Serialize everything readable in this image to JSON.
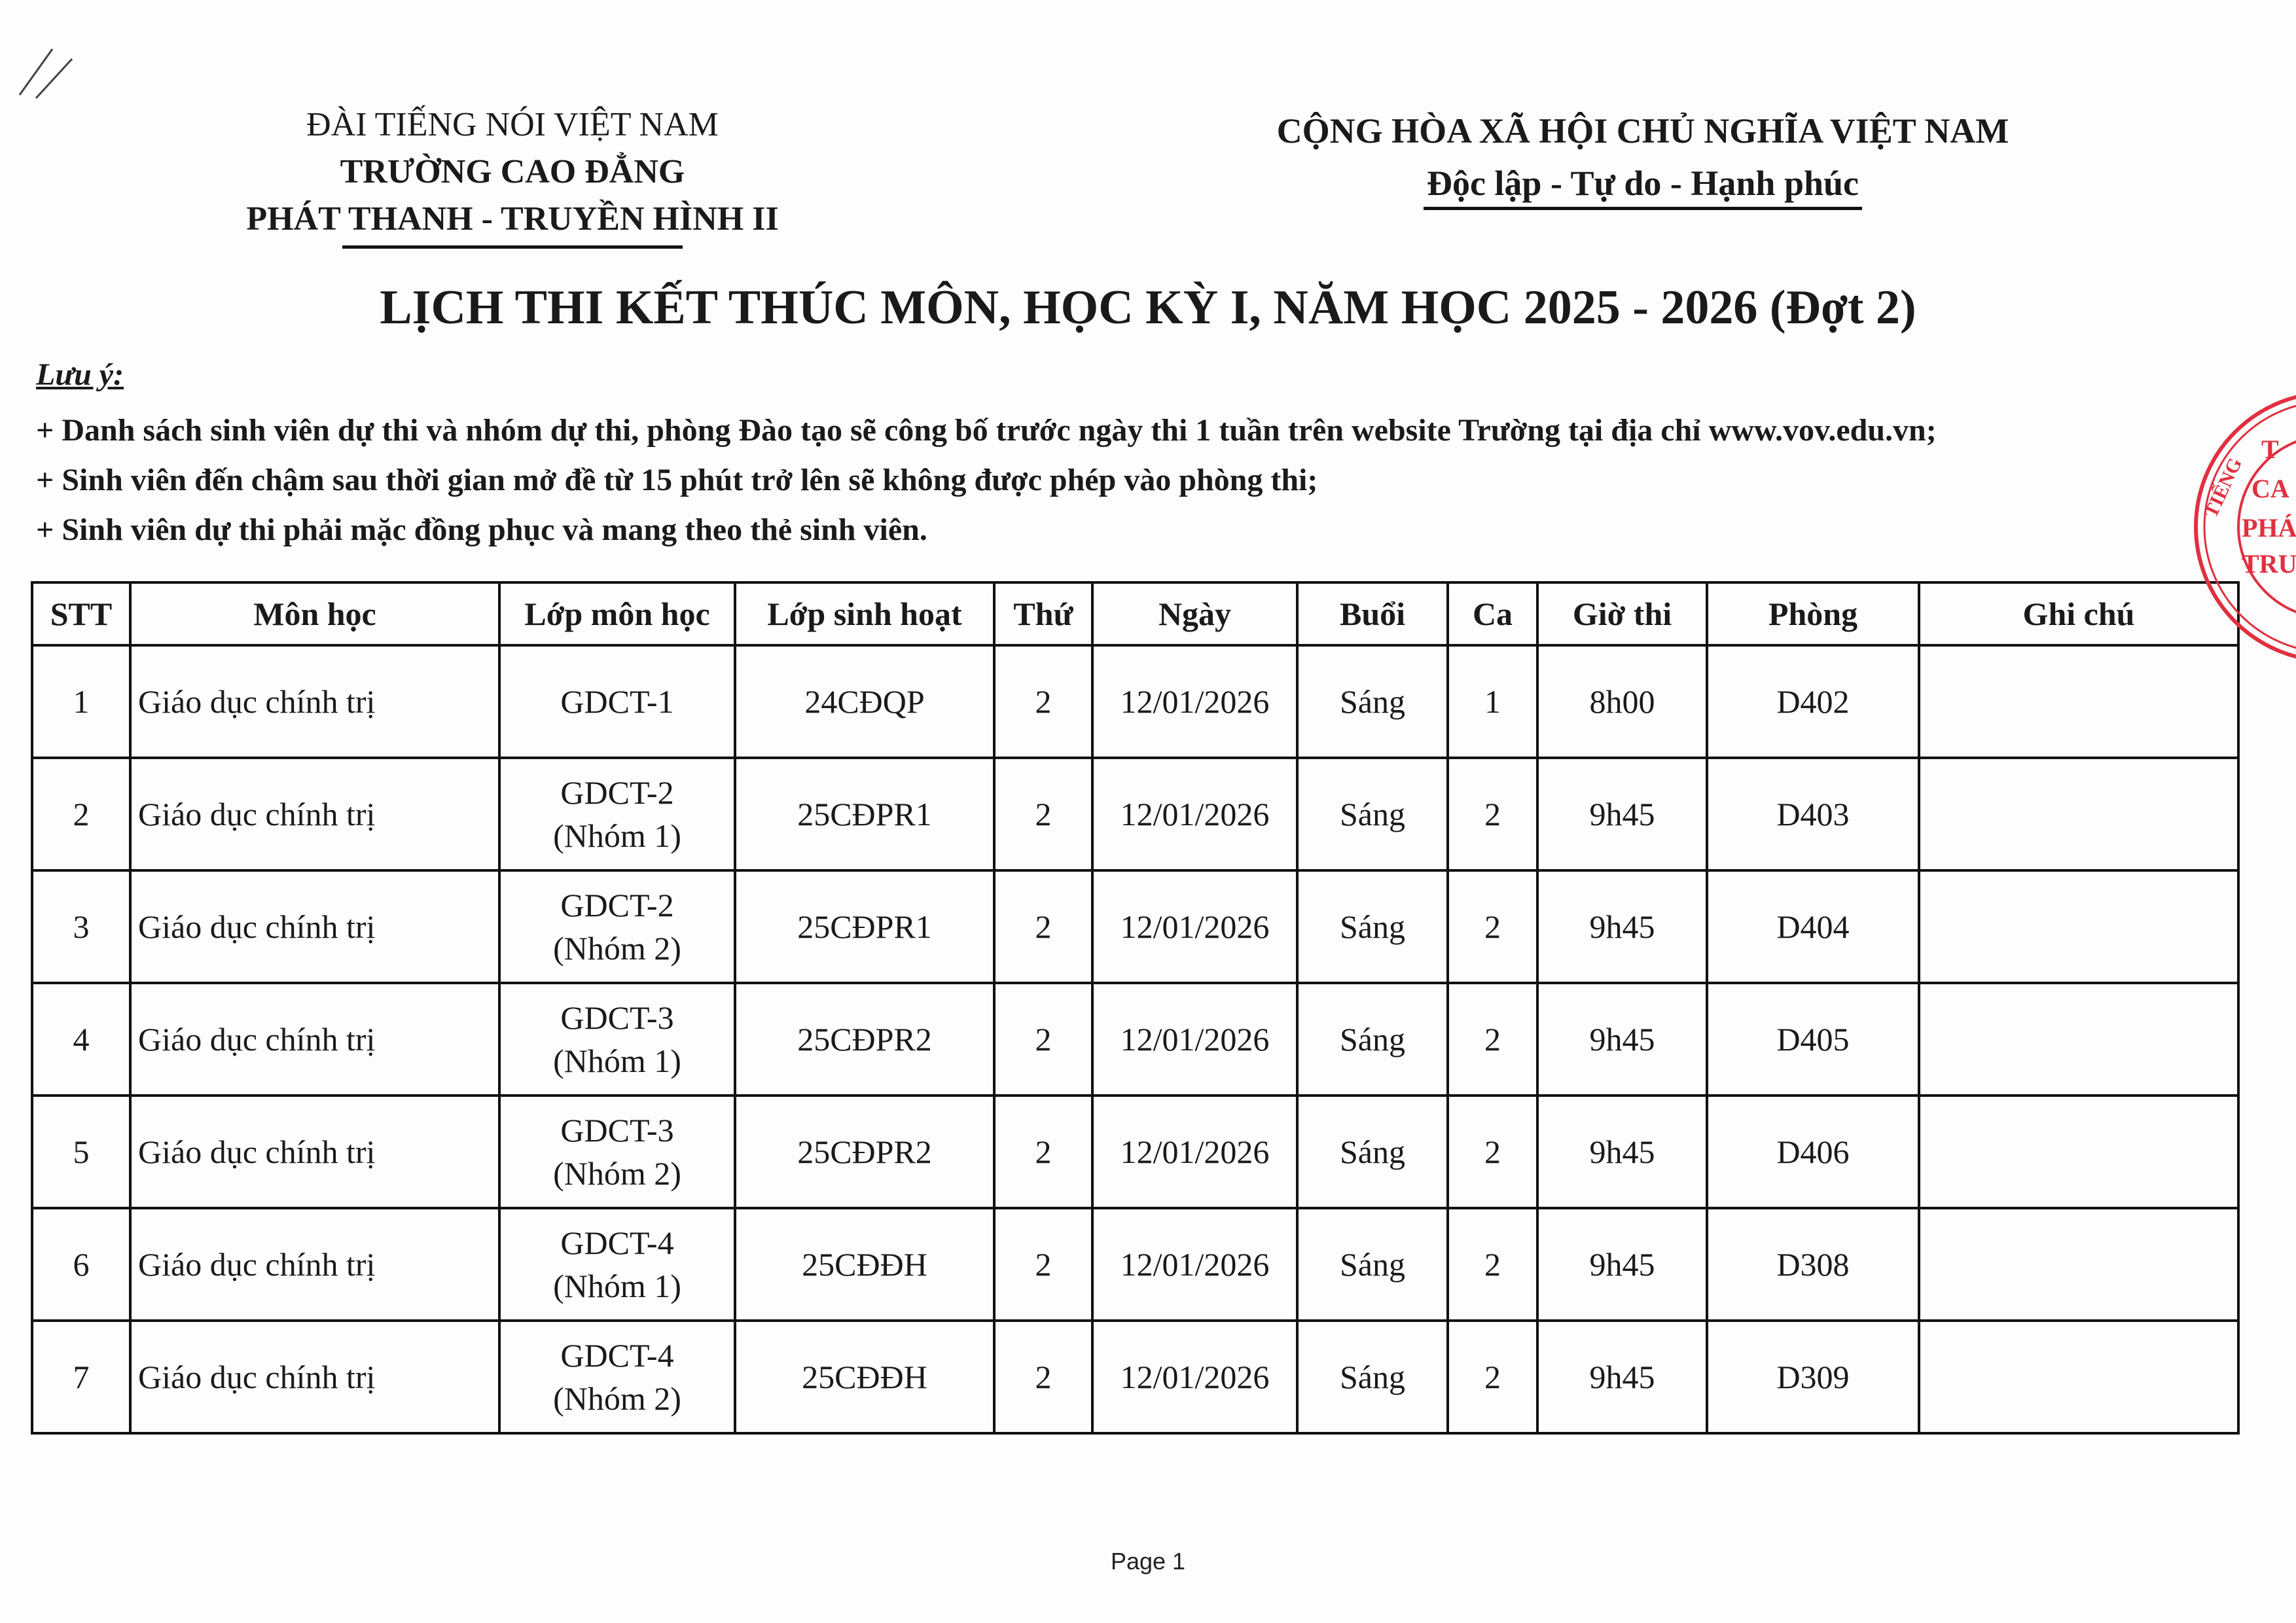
{
  "header_left": {
    "line1": "ĐÀI TIẾNG NÓI VIỆT NAM",
    "line2": "TRƯỜNG CAO ĐẲNG",
    "line3": "PHÁT THANH - TRUYỀN HÌNH II"
  },
  "header_right": {
    "line1": "CỘNG HÒA XÃ HỘI CHỦ NGHĨA VIỆT NAM",
    "line2": "Độc lập - Tự do - Hạnh phúc"
  },
  "title": "LỊCH THI KẾT THÚC MÔN, HỌC KỲ I, NĂM HỌC 2025 - 2026 (Đợt 2)",
  "notes": {
    "label": "Lưu ý:",
    "items": [
      "+ Danh sách sinh viên dự thi và nhóm dự thi, phòng Đào tạo sẽ công bố trước ngày thi 1 tuần trên website Trường tại địa chỉ www.vov.edu.vn;",
      "+ Sinh viên đến chậm sau thời gian mở đề từ 15 phút trở lên sẽ không được phép vào phòng thi;",
      "+ Sinh viên dự thi phải mặc đồng phục và mang theo thẻ sinh viên."
    ]
  },
  "table": {
    "headers": [
      "STT",
      "Môn học",
      "Lớp môn học",
      "Lớp sinh hoạt",
      "Thứ",
      "Ngày",
      "Buổi",
      "Ca",
      "Giờ thi",
      "Phòng",
      "Ghi chú"
    ],
    "rows": [
      {
        "stt": "1",
        "mon": "Giáo dục chính trị",
        "lop1": "GDCT-1",
        "lop2": "",
        "sh": "24CĐQP",
        "thu": "2",
        "ngay": "12/01/2026",
        "buoi": "Sáng",
        "ca": "1",
        "gio": "8h00",
        "phong": "D402",
        "ghichu": ""
      },
      {
        "stt": "2",
        "mon": "Giáo dục chính trị",
        "lop1": "GDCT-2",
        "lop2": "(Nhóm 1)",
        "sh": "25CĐPR1",
        "thu": "2",
        "ngay": "12/01/2026",
        "buoi": "Sáng",
        "ca": "2",
        "gio": "9h45",
        "phong": "D403",
        "ghichu": ""
      },
      {
        "stt": "3",
        "mon": "Giáo dục chính trị",
        "lop1": "GDCT-2",
        "lop2": "(Nhóm 2)",
        "sh": "25CĐPR1",
        "thu": "2",
        "ngay": "12/01/2026",
        "buoi": "Sáng",
        "ca": "2",
        "gio": "9h45",
        "phong": "D404",
        "ghichu": ""
      },
      {
        "stt": "4",
        "mon": "Giáo dục chính trị",
        "lop1": "GDCT-3",
        "lop2": "(Nhóm 1)",
        "sh": "25CĐPR2",
        "thu": "2",
        "ngay": "12/01/2026",
        "buoi": "Sáng",
        "ca": "2",
        "gio": "9h45",
        "phong": "D405",
        "ghichu": ""
      },
      {
        "stt": "5",
        "mon": "Giáo dục chính trị",
        "lop1": "GDCT-3",
        "lop2": "(Nhóm 2)",
        "sh": "25CĐPR2",
        "thu": "2",
        "ngay": "12/01/2026",
        "buoi": "Sáng",
        "ca": "2",
        "gio": "9h45",
        "phong": "D406",
        "ghichu": ""
      },
      {
        "stt": "6",
        "mon": "Giáo dục chính trị",
        "lop1": "GDCT-4",
        "lop2": "(Nhóm 1)",
        "sh": "25CĐĐH",
        "thu": "2",
        "ngay": "12/01/2026",
        "buoi": "Sáng",
        "ca": "2",
        "gio": "9h45",
        "phong": "D308",
        "ghichu": ""
      },
      {
        "stt": "7",
        "mon": "Giáo dục chính trị",
        "lop1": "GDCT-4",
        "lop2": "(Nhóm 2)",
        "sh": "25CĐĐH",
        "thu": "2",
        "ngay": "12/01/2026",
        "buoi": "Sáng",
        "ca": "2",
        "gio": "9h45",
        "phong": "D309",
        "ghichu": ""
      }
    ]
  },
  "stamp": {
    "color": "#e0303f",
    "text_ring": "ĐÀI TIẾNG",
    "text_center": [
      "T",
      "CA",
      "PHÁ",
      "TRU"
    ]
  },
  "footer": "Page 1"
}
